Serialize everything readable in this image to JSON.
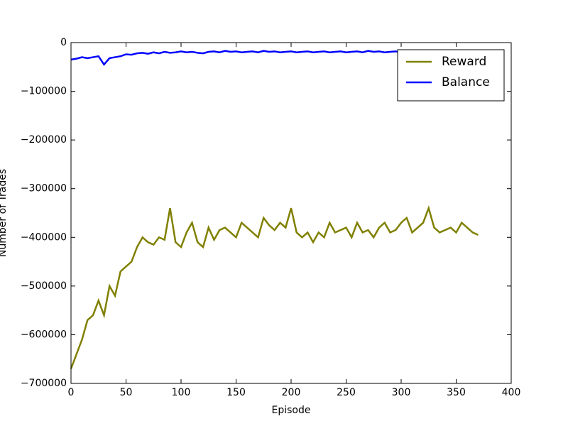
{
  "chart_data": {
    "type": "line",
    "x_label": "Episode",
    "y_label": "Number of Trades",
    "x": [
      0,
      5,
      10,
      15,
      20,
      25,
      30,
      35,
      40,
      45,
      50,
      55,
      60,
      65,
      70,
      75,
      80,
      85,
      90,
      95,
      100,
      105,
      110,
      115,
      120,
      125,
      130,
      135,
      140,
      145,
      150,
      155,
      160,
      165,
      170,
      175,
      180,
      185,
      190,
      195,
      200,
      205,
      210,
      215,
      220,
      225,
      230,
      235,
      240,
      245,
      250,
      255,
      260,
      265,
      270,
      275,
      280,
      285,
      290,
      295,
      300,
      305,
      310,
      315,
      320,
      325,
      330,
      335,
      340,
      345,
      350,
      355,
      360,
      365,
      370
    ],
    "series": [
      {
        "name": "Reward",
        "color": "#808000",
        "values": [
          -670000,
          -640000,
          -610000,
          -570000,
          -560000,
          -530000,
          -560000,
          -500000,
          -520000,
          -470000,
          -460000,
          -450000,
          -420000,
          -400000,
          -410000,
          -415000,
          -400000,
          -405000,
          -340000,
          -410000,
          -420000,
          -390000,
          -370000,
          -410000,
          -420000,
          -380000,
          -405000,
          -385000,
          -380000,
          -390000,
          -400000,
          -370000,
          -380000,
          -390000,
          -400000,
          -360000,
          -375000,
          -385000,
          -370000,
          -380000,
          -340000,
          -390000,
          -400000,
          -390000,
          -410000,
          -390000,
          -400000,
          -370000,
          -390000,
          -385000,
          -380000,
          -400000,
          -370000,
          -390000,
          -385000,
          -400000,
          -380000,
          -370000,
          -390000,
          -385000,
          -370000,
          -360000,
          -390000,
          -380000,
          -370000,
          -340000,
          -380000,
          -390000,
          -385000,
          -380000,
          -390000,
          -370000,
          -380000,
          -390000,
          -395000
        ]
      },
      {
        "name": "Balance",
        "color": "#0000ff",
        "values": [
          -35000,
          -33000,
          -30000,
          -32000,
          -30000,
          -28000,
          -45000,
          -32000,
          -30000,
          -28000,
          -24000,
          -25000,
          -22000,
          -21000,
          -23000,
          -20000,
          -22000,
          -19000,
          -21000,
          -20000,
          -18000,
          -20000,
          -19000,
          -21000,
          -22000,
          -19000,
          -18000,
          -20000,
          -17000,
          -19000,
          -18000,
          -20000,
          -19000,
          -18000,
          -20000,
          -17000,
          -19000,
          -18000,
          -20000,
          -19000,
          -18000,
          -20000,
          -19000,
          -18000,
          -20000,
          -19000,
          -18000,
          -20000,
          -19000,
          -18000,
          -20000,
          -19000,
          -18000,
          -20000,
          -17000,
          -19000,
          -18000,
          -20000,
          -19000,
          -18000,
          -20000,
          -19000,
          -18000,
          -20000,
          -19000,
          -18000,
          -20000,
          -19000,
          -18000,
          -20000,
          -19000,
          -18000,
          -20000,
          -19000,
          -18000
        ]
      }
    ],
    "xlim": [
      0,
      400
    ],
    "xticks": [
      0,
      50,
      100,
      150,
      200,
      250,
      300,
      350,
      400
    ],
    "ylim": [
      -700000,
      0
    ],
    "yticks": [
      {
        "value": -700000,
        "label": "−700000"
      },
      {
        "value": -600000,
        "label": "−600000"
      },
      {
        "value": -500000,
        "label": "−500000"
      },
      {
        "value": -400000,
        "label": "−400000"
      },
      {
        "value": -300000,
        "label": "−300000"
      },
      {
        "value": -200000,
        "label": "−200000"
      },
      {
        "value": -100000,
        "label": "−100000"
      },
      0
    ],
    "legend": "upper right",
    "grid": false
  }
}
